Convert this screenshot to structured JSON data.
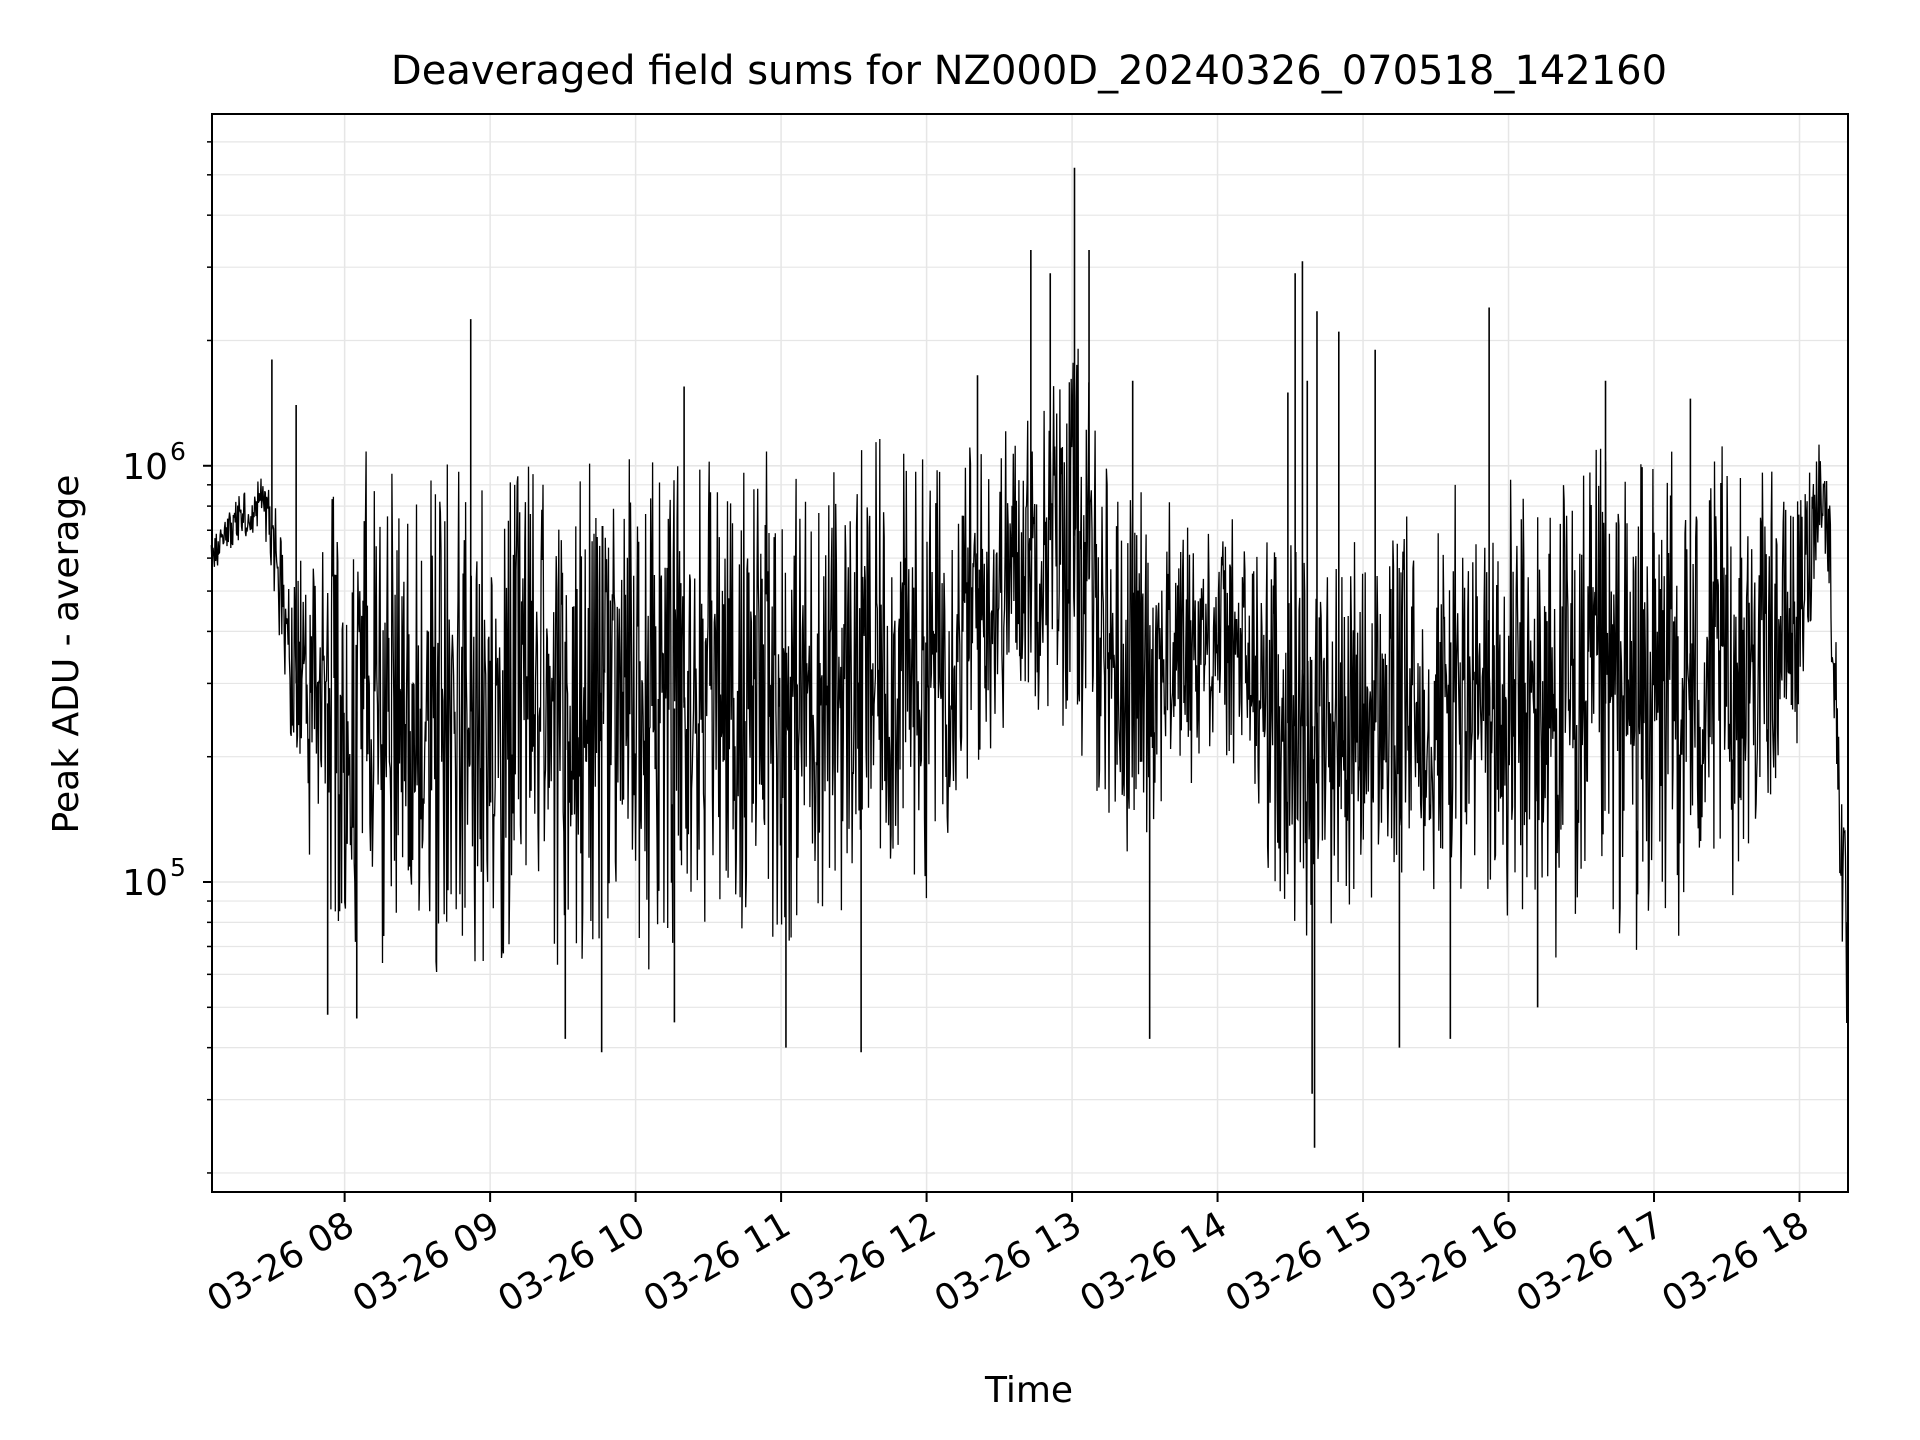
{
  "chart_data": {
    "type": "line",
    "title": "Deaveraged field sums for NZ000D_20240326_070518_142160",
    "xlabel": "Time",
    "ylabel": "Peak ADU - average",
    "yscale": "log",
    "xlim": [
      "2024-03-26T07:05:18",
      "2024-03-26T18:20:00"
    ],
    "ylim": [
      18000,
      7000000
    ],
    "grid": true,
    "line_color": "#000000",
    "grid_color": "#e6e6e6",
    "x_ticks": [
      {
        "value": "2024-03-26T08:00",
        "label": "03-26 08"
      },
      {
        "value": "2024-03-26T09:00",
        "label": "03-26 09"
      },
      {
        "value": "2024-03-26T10:00",
        "label": "03-26 10"
      },
      {
        "value": "2024-03-26T11:00",
        "label": "03-26 11"
      },
      {
        "value": "2024-03-26T12:00",
        "label": "03-26 12"
      },
      {
        "value": "2024-03-26T13:00",
        "label": "03-26 13"
      },
      {
        "value": "2024-03-26T14:00",
        "label": "03-26 14"
      },
      {
        "value": "2024-03-26T15:00",
        "label": "03-26 15"
      },
      {
        "value": "2024-03-26T16:00",
        "label": "03-26 16"
      },
      {
        "value": "2024-03-26T17:00",
        "label": "03-26 17"
      },
      {
        "value": "2024-03-26T18:00",
        "label": "03-26 18"
      }
    ],
    "y_ticks": [
      {
        "value": 100000,
        "base": "10",
        "exp": "5"
      },
      {
        "value": 1000000,
        "base": "10",
        "exp": "6"
      }
    ],
    "envelope": [
      {
        "x": "2024-03-26T07:05",
        "low": 550000,
        "high": 650000
      },
      {
        "x": "2024-03-26T07:15",
        "low": 650000,
        "high": 850000
      },
      {
        "x": "2024-03-26T07:25",
        "low": 700000,
        "high": 950000
      },
      {
        "x": "2024-03-26T07:30",
        "low": 550000,
        "high": 900000
      },
      {
        "x": "2024-03-26T07:35",
        "low": 300000,
        "high": 600000
      },
      {
        "x": "2024-03-26T07:40",
        "low": 180000,
        "high": 500000
      },
      {
        "x": "2024-03-26T07:45",
        "low": 100000,
        "high": 800000
      },
      {
        "x": "2024-03-26T08:00",
        "low": 60000,
        "high": 1100000
      },
      {
        "x": "2024-03-26T09:00",
        "low": 55000,
        "high": 1200000
      },
      {
        "x": "2024-03-26T10:00",
        "low": 60000,
        "high": 1100000
      },
      {
        "x": "2024-03-26T11:00",
        "low": 65000,
        "high": 1150000
      },
      {
        "x": "2024-03-26T12:00",
        "low": 90000,
        "high": 1200000
      },
      {
        "x": "2024-03-26T12:40",
        "low": 250000,
        "high": 1500000
      },
      {
        "x": "2024-03-26T13:00",
        "low": 200000,
        "high": 2500000
      },
      {
        "x": "2024-03-26T13:20",
        "low": 100000,
        "high": 1000000
      },
      {
        "x": "2024-03-26T14:00",
        "low": 200000,
        "high": 800000
      },
      {
        "x": "2024-03-26T14:30",
        "low": 70000,
        "high": 800000
      },
      {
        "x": "2024-03-26T15:00",
        "low": 80000,
        "high": 700000
      },
      {
        "x": "2024-03-26T15:30",
        "low": 80000,
        "high": 900000
      },
      {
        "x": "2024-03-26T16:00",
        "low": 60000,
        "high": 1000000
      },
      {
        "x": "2024-03-26T16:30",
        "low": 60000,
        "high": 1200000
      },
      {
        "x": "2024-03-26T17:00",
        "low": 60000,
        "high": 1200000
      },
      {
        "x": "2024-03-26T17:30",
        "low": 80000,
        "high": 1150000
      },
      {
        "x": "2024-03-26T18:00",
        "low": 200000,
        "high": 900000
      },
      {
        "x": "2024-03-26T18:08",
        "low": 700000,
        "high": 1200000
      },
      {
        "x": "2024-03-26T18:12",
        "low": 500000,
        "high": 1000000
      },
      {
        "x": "2024-03-26T18:20",
        "low": 30000,
        "high": 90000
      }
    ],
    "spikes": [
      {
        "x": "2024-03-26T07:30",
        "y": 1800000
      },
      {
        "x": "2024-03-26T07:40",
        "y": 1400000
      },
      {
        "x": "2024-03-26T07:53",
        "y": 48000
      },
      {
        "x": "2024-03-26T08:05",
        "y": 47000
      },
      {
        "x": "2024-03-26T08:52",
        "y": 2250000
      },
      {
        "x": "2024-03-26T09:31",
        "y": 42000
      },
      {
        "x": "2024-03-26T09:46",
        "y": 39000
      },
      {
        "x": "2024-03-26T10:16",
        "y": 46000
      },
      {
        "x": "2024-03-26T10:20",
        "y": 1550000
      },
      {
        "x": "2024-03-26T11:02",
        "y": 40000
      },
      {
        "x": "2024-03-26T11:33",
        "y": 39000
      },
      {
        "x": "2024-03-26T12:21",
        "y": 1650000
      },
      {
        "x": "2024-03-26T12:43",
        "y": 3300000
      },
      {
        "x": "2024-03-26T12:51",
        "y": 2900000
      },
      {
        "x": "2024-03-26T13:01",
        "y": 5200000
      },
      {
        "x": "2024-03-26T13:07",
        "y": 3300000
      },
      {
        "x": "2024-03-26T13:25",
        "y": 1600000
      },
      {
        "x": "2024-03-26T13:32",
        "y": 42000
      },
      {
        "x": "2024-03-26T14:29",
        "y": 1500000
      },
      {
        "x": "2024-03-26T14:32",
        "y": 2900000
      },
      {
        "x": "2024-03-26T14:35",
        "y": 3100000
      },
      {
        "x": "2024-03-26T14:37",
        "y": 1600000
      },
      {
        "x": "2024-03-26T14:39",
        "y": 31000
      },
      {
        "x": "2024-03-26T14:40",
        "y": 23000
      },
      {
        "x": "2024-03-26T14:41",
        "y": 2350000
      },
      {
        "x": "2024-03-26T14:50",
        "y": 2100000
      },
      {
        "x": "2024-03-26T15:05",
        "y": 1900000
      },
      {
        "x": "2024-03-26T15:15",
        "y": 40000
      },
      {
        "x": "2024-03-26T15:36",
        "y": 42000
      },
      {
        "x": "2024-03-26T15:52",
        "y": 2400000
      },
      {
        "x": "2024-03-26T16:12",
        "y": 50000
      },
      {
        "x": "2024-03-26T16:40",
        "y": 1600000
      },
      {
        "x": "2024-03-26T17:15",
        "y": 1450000
      }
    ]
  }
}
